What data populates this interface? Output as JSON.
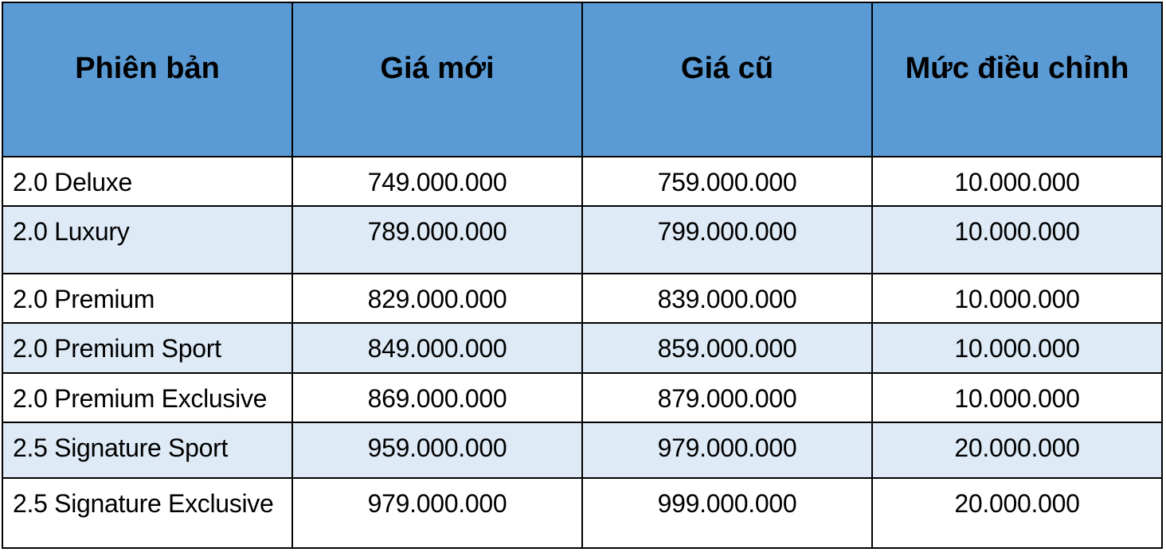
{
  "table": {
    "headers": [
      "Phiên bản",
      "Giá mới",
      "Giá cũ",
      "Mức điều chỉnh"
    ],
    "rows": [
      [
        "2.0 Deluxe",
        "749.000.000",
        "759.000.000",
        "10.000.000"
      ],
      [
        "2.0 Luxury",
        "789.000.000",
        "799.000.000",
        "10.000.000"
      ],
      [
        "2.0 Premium",
        "829.000.000",
        "839.000.000",
        "10.000.000"
      ],
      [
        "2.0 Premium Sport",
        "849.000.000",
        "859.000.000",
        "10.000.000"
      ],
      [
        "2.0 Premium Exclusive",
        "869.000.000",
        "879.000.000",
        "10.000.000"
      ],
      [
        "2.5 Signature Sport",
        "959.000.000",
        "979.000.000",
        "20.000.000"
      ],
      [
        "2.5 Signature Exclusive",
        "979.000.000",
        "999.000.000",
        "20.000.000"
      ]
    ],
    "colors": {
      "header_bg": "#5B9BD5",
      "band_bg": "#DEEAF6",
      "row_bg": "#FFFFFF",
      "border": "#000000",
      "text": "#000000"
    }
  }
}
